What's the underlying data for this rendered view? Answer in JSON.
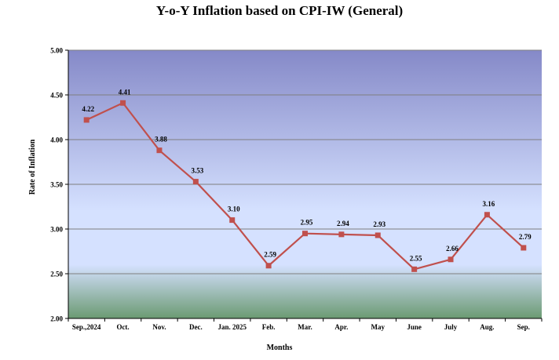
{
  "chart_data": {
    "type": "line",
    "title": "Y-o-Y Inflation based on CPI-IW (General)",
    "xlabel": "Months",
    "ylabel": "Rate of Inflation",
    "categories": [
      "Sep.,2024",
      "Oct.",
      "Nov.",
      "Dec.",
      "Jan. 2025",
      "Feb.",
      "Mar.",
      "Apr.",
      "May",
      "June",
      "July",
      "Aug.",
      "Sep."
    ],
    "series": [
      {
        "values": [
          4.22,
          4.41,
          3.88,
          3.53,
          3.1,
          2.59,
          2.95,
          2.94,
          2.93,
          2.55,
          2.66,
          3.16,
          2.79
        ],
        "data_labels": [
          "4.22",
          "4.41",
          "3.88",
          "3.53",
          "3.10",
          "2.59",
          "2.95",
          "2.94",
          "2.93",
          "2.55",
          "2.66",
          "3.16",
          "2.79"
        ]
      }
    ],
    "ylim": [
      2.0,
      5.0
    ],
    "yticks": [
      "2.00",
      "2.50",
      "3.00",
      "3.50",
      "4.00",
      "4.50",
      "5.00"
    ],
    "grid": true,
    "colors": {
      "line": "#C0504D",
      "marker": "#C0504D",
      "gridline": "#7F7F7F",
      "plot_top": "#8589C8",
      "plot_mid": "#D5E1FF",
      "plot_bottom": "#6B9A72"
    }
  }
}
